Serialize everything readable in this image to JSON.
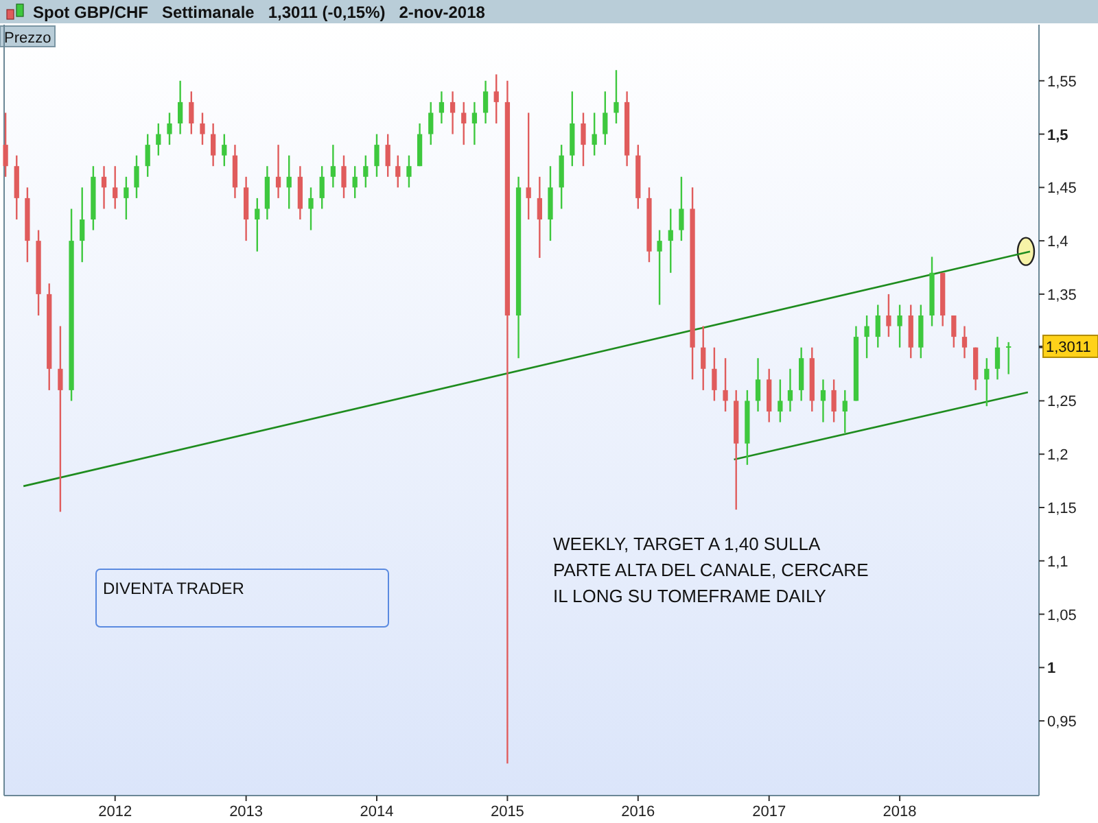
{
  "chart_data": {
    "type": "candlestick",
    "title": "Spot GBP/CHF   Settimanale   1,3011 (-0,15%)   2-nov-2018",
    "ylabel": "Prezzo",
    "x": [
      "2011-03",
      "2011-04",
      "2011-05",
      "2011-06",
      "2011-07",
      "2011-08",
      "2011-09",
      "2011-10",
      "2011-11",
      "2011-12",
      "2012-01",
      "2012-02",
      "2012-03",
      "2012-04",
      "2012-05",
      "2012-06",
      "2012-07",
      "2012-08",
      "2012-09",
      "2012-10",
      "2012-11",
      "2012-12",
      "2013-01",
      "2013-02",
      "2013-03",
      "2013-04",
      "2013-05",
      "2013-06",
      "2013-07",
      "2013-08",
      "2013-09",
      "2013-10",
      "2013-11",
      "2013-12",
      "2014-01",
      "2014-02",
      "2014-03",
      "2014-04",
      "2014-05",
      "2014-06",
      "2014-07",
      "2014-08",
      "2014-09",
      "2014-10",
      "2014-11",
      "2014-12",
      "2015-01",
      "2015-02",
      "2015-03",
      "2015-04",
      "2015-05",
      "2015-06",
      "2015-07",
      "2015-08",
      "2015-09",
      "2015-10",
      "2015-11",
      "2015-12",
      "2016-01",
      "2016-02",
      "2016-03",
      "2016-04",
      "2016-05",
      "2016-06",
      "2016-07",
      "2016-08",
      "2016-09",
      "2016-10",
      "2016-11",
      "2016-12",
      "2017-01",
      "2017-02",
      "2017-03",
      "2017-04",
      "2017-05",
      "2017-06",
      "2017-07",
      "2017-08",
      "2017-09",
      "2017-10",
      "2017-11",
      "2017-12",
      "2018-01",
      "2018-02",
      "2018-03",
      "2018-04",
      "2018-05",
      "2018-06",
      "2018-07",
      "2018-08",
      "2018-09",
      "2018-10",
      "2018-11"
    ],
    "ohlc": [
      [
        1.49,
        1.52,
        1.46,
        1.47
      ],
      [
        1.47,
        1.48,
        1.42,
        1.44
      ],
      [
        1.44,
        1.45,
        1.38,
        1.4
      ],
      [
        1.4,
        1.41,
        1.33,
        1.35
      ],
      [
        1.35,
        1.36,
        1.26,
        1.28
      ],
      [
        1.28,
        1.32,
        1.146,
        1.26
      ],
      [
        1.26,
        1.43,
        1.25,
        1.4
      ],
      [
        1.4,
        1.45,
        1.38,
        1.42
      ],
      [
        1.42,
        1.47,
        1.41,
        1.46
      ],
      [
        1.46,
        1.47,
        1.43,
        1.45
      ],
      [
        1.45,
        1.47,
        1.43,
        1.44
      ],
      [
        1.44,
        1.46,
        1.42,
        1.45
      ],
      [
        1.45,
        1.48,
        1.44,
        1.47
      ],
      [
        1.47,
        1.5,
        1.46,
        1.49
      ],
      [
        1.49,
        1.51,
        1.48,
        1.5
      ],
      [
        1.5,
        1.52,
        1.49,
        1.51
      ],
      [
        1.51,
        1.55,
        1.5,
        1.53
      ],
      [
        1.53,
        1.54,
        1.5,
        1.51
      ],
      [
        1.51,
        1.52,
        1.49,
        1.5
      ],
      [
        1.5,
        1.51,
        1.47,
        1.48
      ],
      [
        1.48,
        1.5,
        1.47,
        1.49
      ],
      [
        1.48,
        1.49,
        1.44,
        1.45
      ],
      [
        1.45,
        1.46,
        1.4,
        1.42
      ],
      [
        1.42,
        1.44,
        1.39,
        1.43
      ],
      [
        1.43,
        1.47,
        1.42,
        1.46
      ],
      [
        1.46,
        1.49,
        1.44,
        1.45
      ],
      [
        1.45,
        1.48,
        1.43,
        1.46
      ],
      [
        1.46,
        1.47,
        1.42,
        1.43
      ],
      [
        1.43,
        1.45,
        1.41,
        1.44
      ],
      [
        1.44,
        1.47,
        1.43,
        1.46
      ],
      [
        1.46,
        1.49,
        1.45,
        1.47
      ],
      [
        1.47,
        1.48,
        1.44,
        1.45
      ],
      [
        1.45,
        1.47,
        1.44,
        1.46
      ],
      [
        1.46,
        1.48,
        1.45,
        1.47
      ],
      [
        1.47,
        1.5,
        1.46,
        1.49
      ],
      [
        1.49,
        1.5,
        1.46,
        1.47
      ],
      [
        1.47,
        1.48,
        1.45,
        1.46
      ],
      [
        1.46,
        1.48,
        1.45,
        1.47
      ],
      [
        1.47,
        1.51,
        1.47,
        1.5
      ],
      [
        1.5,
        1.53,
        1.49,
        1.52
      ],
      [
        1.52,
        1.54,
        1.51,
        1.53
      ],
      [
        1.53,
        1.54,
        1.5,
        1.52
      ],
      [
        1.52,
        1.53,
        1.49,
        1.51
      ],
      [
        1.51,
        1.53,
        1.49,
        1.52
      ],
      [
        1.52,
        1.55,
        1.51,
        1.54
      ],
      [
        1.54,
        1.556,
        1.51,
        1.53
      ],
      [
        1.53,
        1.55,
        0.91,
        1.33
      ],
      [
        1.33,
        1.46,
        1.29,
        1.45
      ],
      [
        1.45,
        1.52,
        1.42,
        1.44
      ],
      [
        1.44,
        1.46,
        1.384,
        1.42
      ],
      [
        1.42,
        1.47,
        1.4,
        1.45
      ],
      [
        1.45,
        1.49,
        1.43,
        1.48
      ],
      [
        1.48,
        1.54,
        1.47,
        1.51
      ],
      [
        1.51,
        1.52,
        1.47,
        1.49
      ],
      [
        1.49,
        1.52,
        1.48,
        1.5
      ],
      [
        1.5,
        1.54,
        1.49,
        1.52
      ],
      [
        1.52,
        1.56,
        1.51,
        1.53
      ],
      [
        1.53,
        1.54,
        1.47,
        1.48
      ],
      [
        1.48,
        1.49,
        1.43,
        1.44
      ],
      [
        1.44,
        1.45,
        1.38,
        1.39
      ],
      [
        1.39,
        1.41,
        1.34,
        1.4
      ],
      [
        1.4,
        1.43,
        1.37,
        1.41
      ],
      [
        1.41,
        1.46,
        1.4,
        1.43
      ],
      [
        1.43,
        1.45,
        1.27,
        1.3
      ],
      [
        1.3,
        1.32,
        1.26,
        1.28
      ],
      [
        1.28,
        1.3,
        1.25,
        1.26
      ],
      [
        1.26,
        1.29,
        1.24,
        1.25
      ],
      [
        1.25,
        1.26,
        1.148,
        1.21
      ],
      [
        1.21,
        1.26,
        1.19,
        1.25
      ],
      [
        1.25,
        1.29,
        1.24,
        1.27
      ],
      [
        1.27,
        1.28,
        1.23,
        1.24
      ],
      [
        1.24,
        1.27,
        1.23,
        1.25
      ],
      [
        1.25,
        1.28,
        1.24,
        1.26
      ],
      [
        1.26,
        1.3,
        1.25,
        1.29
      ],
      [
        1.29,
        1.3,
        1.24,
        1.25
      ],
      [
        1.25,
        1.27,
        1.23,
        1.26
      ],
      [
        1.26,
        1.27,
        1.23,
        1.24
      ],
      [
        1.24,
        1.26,
        1.22,
        1.25
      ],
      [
        1.25,
        1.32,
        1.25,
        1.31
      ],
      [
        1.31,
        1.33,
        1.29,
        1.32
      ],
      [
        1.31,
        1.34,
        1.3,
        1.33
      ],
      [
        1.33,
        1.35,
        1.31,
        1.32
      ],
      [
        1.32,
        1.34,
        1.3,
        1.33
      ],
      [
        1.33,
        1.34,
        1.29,
        1.3
      ],
      [
        1.3,
        1.34,
        1.29,
        1.33
      ],
      [
        1.33,
        1.385,
        1.32,
        1.37
      ],
      [
        1.37,
        1.37,
        1.32,
        1.33
      ],
      [
        1.33,
        1.33,
        1.3,
        1.31
      ],
      [
        1.31,
        1.32,
        1.29,
        1.3
      ],
      [
        1.3,
        1.3,
        1.26,
        1.27
      ],
      [
        1.27,
        1.29,
        1.245,
        1.28
      ],
      [
        1.28,
        1.31,
        1.27,
        1.3
      ],
      [
        1.3,
        1.305,
        1.275,
        1.3011
      ]
    ],
    "colors": [
      "#e05c5c",
      "#e05c5c",
      "#e05c5c",
      "#e05c5c",
      "#e05c5c",
      "#e05c5c",
      "#3ec83e",
      "#3ec83e",
      "#3ec83e",
      "#e05c5c",
      "#e05c5c",
      "#3ec83e",
      "#3ec83e",
      "#3ec83e",
      "#3ec83e",
      "#3ec83e",
      "#3ec83e",
      "#e05c5c",
      "#e05c5c",
      "#e05c5c",
      "#3ec83e",
      "#e05c5c",
      "#e05c5c",
      "#3ec83e",
      "#3ec83e",
      "#e05c5c",
      "#3ec83e",
      "#e05c5c",
      "#3ec83e",
      "#3ec83e",
      "#3ec83e",
      "#e05c5c",
      "#3ec83e",
      "#3ec83e",
      "#3ec83e",
      "#e05c5c",
      "#e05c5c",
      "#3ec83e",
      "#3ec83e",
      "#3ec83e",
      "#3ec83e",
      "#e05c5c",
      "#e05c5c",
      "#3ec83e",
      "#3ec83e",
      "#e05c5c",
      "#e05c5c",
      "#3ec83e",
      "#e05c5c",
      "#e05c5c",
      "#3ec83e",
      "#3ec83e",
      "#3ec83e",
      "#e05c5c",
      "#3ec83e",
      "#3ec83e",
      "#3ec83e",
      "#e05c5c",
      "#e05c5c",
      "#e05c5c",
      "#3ec83e",
      "#3ec83e",
      "#3ec83e",
      "#e05c5c",
      "#e05c5c",
      "#e05c5c",
      "#e05c5c",
      "#e05c5c",
      "#3ec83e",
      "#3ec83e",
      "#e05c5c",
      "#3ec83e",
      "#3ec83e",
      "#3ec83e",
      "#e05c5c",
      "#3ec83e",
      "#e05c5c",
      "#3ec83e",
      "#3ec83e",
      "#3ec83e",
      "#3ec83e",
      "#e05c5c",
      "#3ec83e",
      "#e05c5c",
      "#3ec83e",
      "#3ec83e",
      "#e05c5c",
      "#e05c5c",
      "#e05c5c",
      "#e05c5c",
      "#3ec83e",
      "#3ec83e",
      "#3ec83e"
    ],
    "series": [
      {
        "type": "line",
        "color": "#1e8c1e",
        "x": [
          "2011-04-20",
          "2018-12-31"
        ],
        "values": [
          1.17,
          1.39
        ]
      },
      {
        "type": "line",
        "color": "#1e8c1e",
        "x": [
          "2016-09-25",
          "2018-12-25"
        ],
        "values": [
          1.195,
          1.258
        ]
      }
    ],
    "xlim": [
      "2011-02-25",
      "2019-01-25"
    ],
    "xticks": [
      {
        "value": "2012-01-01",
        "label": "2012"
      },
      {
        "value": "2013-01-01",
        "label": "2013"
      },
      {
        "value": "2014-01-01",
        "label": "2014"
      },
      {
        "value": "2015-01-01",
        "label": "2015"
      },
      {
        "value": "2016-01-01",
        "label": "2016"
      },
      {
        "value": "2017-01-01",
        "label": "2017"
      },
      {
        "value": "2018-01-01",
        "label": "2018"
      }
    ],
    "ylim": [
      0.88,
      1.6
    ],
    "yticks": [
      {
        "value": 0.95,
        "label": "0,95"
      },
      1,
      {
        "value": 1.05,
        "label": "1,05"
      },
      {
        "value": 1.1,
        "label": "1,1"
      },
      {
        "value": 1.15,
        "label": "1,15"
      },
      {
        "value": 1.2,
        "label": "1,2"
      },
      {
        "value": 1.25,
        "label": "1,25"
      },
      {
        "value": 1.3,
        "label": null
      },
      {
        "value": 1.35,
        "label": "1,35"
      },
      {
        "value": 1.4,
        "label": "1,4"
      },
      {
        "value": 1.45,
        "label": "1,45"
      },
      {
        "value": 1.5,
        "label": "1,5"
      },
      {
        "value": 1.55,
        "label": "1,55"
      }
    ],
    "annotations": [
      {
        "text": "1,3011",
        "y": 1.3011
      },
      "WEEKLY, TARGET A 1,40 SULLA\nPARTE ALTA DEL CANALE, CERCARE\nIL LONG SU TOMEFRAME DAILY",
      "DIVENTA TRADER"
    ],
    "grid": false
  }
}
